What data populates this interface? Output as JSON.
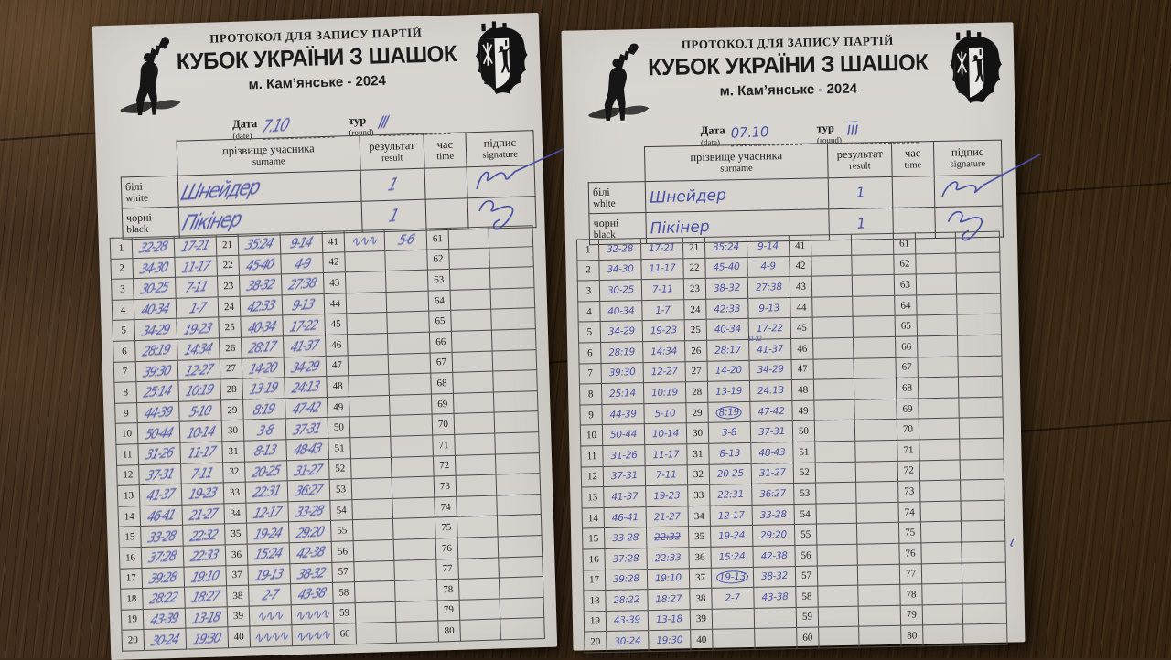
{
  "colors": {
    "ink": "#4650a6",
    "paper": "#d6d3cf",
    "wood": "#3a2819"
  },
  "common": {
    "protocol_title": "ПРОТОКОЛ ДЛЯ ЗАПИСУ ПАРТІЙ",
    "event_title": "КУБОК УКРАЇНИ З ШАШОК",
    "location_year": "м. Кам’янське - 2024",
    "date_label": "Дата",
    "date_sublabel": "(date)",
    "round_label": "тур",
    "round_sublabel": "(round)",
    "surname_label": "прізвище учасника",
    "surname_sublabel": "surname",
    "result_label": "результат",
    "result_sublabel": "result",
    "time_label": "час",
    "time_sublabel": "time",
    "signature_label": "підпис",
    "signature_sublabel": "signature",
    "white_label": "білі",
    "white_sublabel": "white",
    "black_label": "чорні",
    "black_sublabel": "black"
  },
  "number_columns": [
    [
      1,
      20
    ],
    [
      21,
      40
    ],
    [
      41,
      60
    ],
    [
      61,
      80
    ]
  ],
  "game": {
    "col1": [
      [
        "32-28",
        "17-21"
      ],
      [
        "34-30",
        "11-17"
      ],
      [
        "30-25",
        "7-11"
      ],
      [
        "40-34",
        "1-7"
      ],
      [
        "34-29",
        "19-23"
      ],
      [
        "28:19",
        "14:34"
      ],
      [
        "39:30",
        "12-27"
      ],
      [
        "25:14",
        "10:19"
      ],
      [
        "44-39",
        "5-10"
      ],
      [
        "50-44",
        "10-14"
      ],
      [
        "31-26",
        "11-17"
      ],
      [
        "37-31",
        "7-11"
      ],
      [
        "41-37",
        "19-23"
      ],
      [
        "46-41",
        "21-27"
      ],
      [
        "33-28",
        "22:32"
      ],
      [
        "37:28",
        "22:33"
      ],
      [
        "39:28",
        "19:10"
      ],
      [
        "28:22",
        "18:27"
      ],
      [
        "43-39",
        "13-18"
      ],
      [
        "30-24",
        "19:30"
      ]
    ],
    "col2": [
      [
        "35:24",
        "9-14"
      ],
      [
        "45-40",
        "4-9"
      ],
      [
        "38-32",
        "27:38"
      ],
      [
        "42:33",
        "9-13"
      ],
      [
        "40-34",
        "17-22"
      ],
      [
        "28:17",
        "41-37"
      ],
      [
        "14-20",
        "34-29"
      ],
      [
        "13-19",
        "24:13"
      ],
      [
        "8:19",
        "47-42"
      ],
      [
        "3-8",
        "37-31"
      ],
      [
        "8-13",
        "48-43"
      ],
      [
        "20-25",
        "31-27"
      ],
      [
        "22:31",
        "36:27"
      ],
      [
        "12-17",
        "33-28"
      ],
      [
        "19-24",
        "29:20"
      ],
      [
        "15:24",
        "42-38"
      ],
      [
        "19-13",
        "38-32"
      ],
      [
        "2-7",
        "43-38"
      ],
      [
        "",
        ""
      ],
      [
        "",
        ""
      ]
    ],
    "move26_superscript": "11-22"
  },
  "sheets": {
    "left": {
      "date_value": "7.10",
      "round_value": "III",
      "white": {
        "name": "Шнейдер",
        "result": "1"
      },
      "black": {
        "name": "Пікінер",
        "result": "1"
      },
      "handwriting": "scrawl",
      "extra_cells": {
        "39:w2": "∿∿∿",
        "39:b2": "∿∿∿∿",
        "40:w2": "∿∿∿∿",
        "40:b2": "∿∿∿∿",
        "41:w3": "∿∿∿",
        "41:b3": "5-6"
      },
      "annotations": {
        "circled": [],
        "struck": [],
        "superscript": null
      }
    },
    "right": {
      "date_value": "07.10",
      "round_value": "III",
      "white": {
        "name": "Шнейдер",
        "result": "1"
      },
      "black": {
        "name": "Пікінер",
        "result": "1"
      },
      "handwriting": "neat",
      "extra_cells": {},
      "annotations": {
        "circled": [
          "29:w2",
          "37:w2"
        ],
        "struck": [
          "15:b1"
        ],
        "superscript": {
          "cell": "26:w2",
          "text": "11-22"
        }
      }
    }
  },
  "scene": {
    "pen_mark": "ɩ"
  }
}
